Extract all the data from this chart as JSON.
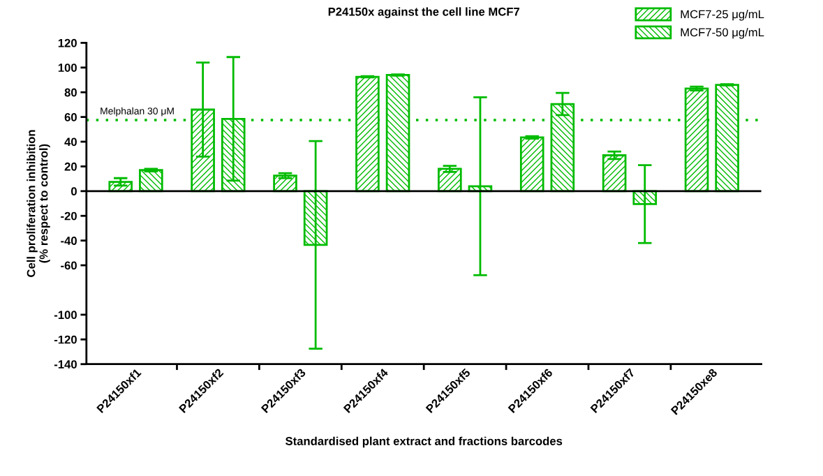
{
  "chart_data": {
    "type": "bar",
    "title": "P24150x against the cell line MCF7",
    "xlabel": "Standardised plant extract and fractions barcodes",
    "ylabel": "Cell proliferation inhibition\n(% respect to control)",
    "categories": [
      "P24150xf1",
      "P24150xf2",
      "P24150xf3",
      "P24150xf4",
      "P24150xf5",
      "P24150xf6",
      "P24150xf7",
      "P24150xe8"
    ],
    "series": [
      {
        "name": "MCF7-25 μg/mL",
        "color": "#00bb00",
        "values": [
          7.5,
          66,
          12.5,
          92.5,
          18,
          43.5,
          29,
          83
        ],
        "errors": [
          3,
          38,
          2,
          0.5,
          2.5,
          1,
          3,
          1.5
        ]
      },
      {
        "name": "MCF7-50 μg/mL",
        "color": "#00bb00",
        "values": [
          17,
          58.5,
          -43.5,
          94,
          4,
          70.5,
          -10.5,
          86
        ],
        "errors": [
          1,
          50,
          84,
          0.5,
          72,
          9,
          31.5,
          0.5
        ]
      }
    ],
    "ylim": [
      -140,
      120
    ],
    "yticks": [
      120,
      100,
      80,
      60,
      40,
      20,
      0,
      -20,
      -40,
      -60,
      -100,
      -120,
      -140
    ],
    "ref_lines": [
      {
        "axis": "y",
        "value": 57.5,
        "label": "Melphalan 30 μM",
        "color": "#00bb00",
        "line_style": "dotted"
      }
    ],
    "legend": "top right"
  }
}
